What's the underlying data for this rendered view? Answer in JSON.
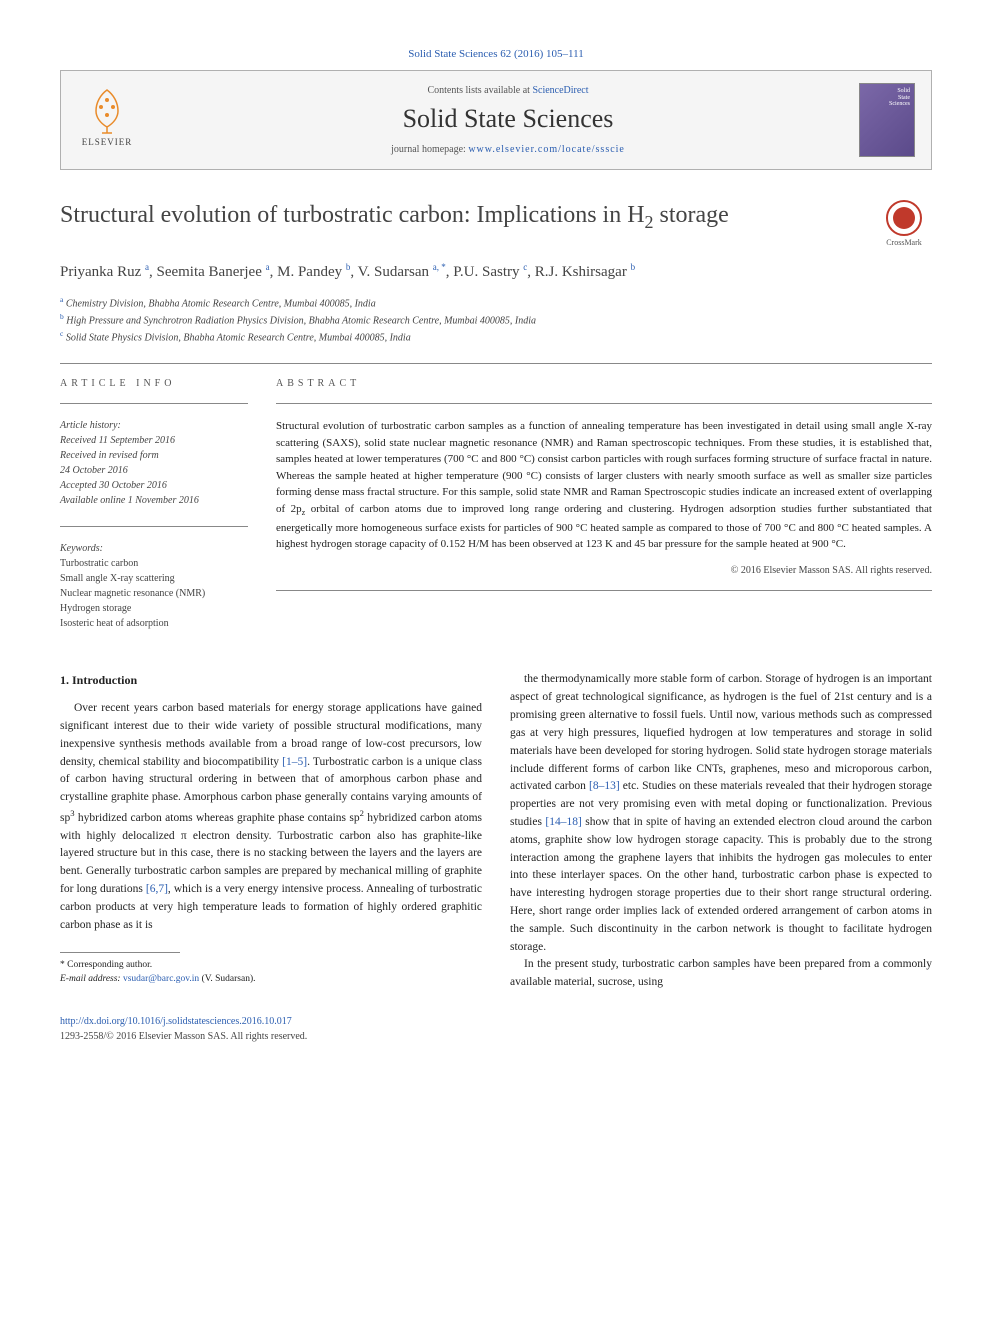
{
  "citation": "Solid State Sciences 62 (2016) 105–111",
  "header": {
    "contents_prefix": "Contents lists available at ",
    "contents_link": "ScienceDirect",
    "journal_name": "Solid State Sciences",
    "homepage_prefix": "journal homepage: ",
    "homepage_url": "www.elsevier.com/locate/ssscie",
    "publisher": "ELSEVIER",
    "cover_label": "Solid\nState\nSciences"
  },
  "crossmark_label": "CrossMark",
  "title_html": "Structural evolution of turbostratic carbon: Implications in H<sub>2</sub> storage",
  "authors_html": "Priyanka Ruz <sup>a</sup>, Seemita Banerjee <sup>a</sup>, M. Pandey <sup>b</sup>, V. Sudarsan <sup>a, *</sup>, P.U. Sastry <sup>c</sup>, R.J. Kshirsagar <sup>b</sup>",
  "affiliations": [
    {
      "marker": "a",
      "text": "Chemistry Division, Bhabha Atomic Research Centre, Mumbai 400085, India"
    },
    {
      "marker": "b",
      "text": "High Pressure and Synchrotron Radiation Physics Division, Bhabha Atomic Research Centre, Mumbai 400085, India"
    },
    {
      "marker": "c",
      "text": "Solid State Physics Division, Bhabha Atomic Research Centre, Mumbai 400085, India"
    }
  ],
  "article_info": {
    "heading": "ARTICLE INFO",
    "history_label": "Article history:",
    "history": [
      "Received 11 September 2016",
      "Received in revised form",
      "24 October 2016",
      "Accepted 30 October 2016",
      "Available online 1 November 2016"
    ],
    "keywords_label": "Keywords:",
    "keywords": [
      "Turbostratic carbon",
      "Small angle X-ray scattering",
      "Nuclear magnetic resonance (NMR)",
      "Hydrogen storage",
      "Isosteric heat of adsorption"
    ]
  },
  "abstract": {
    "heading": "ABSTRACT",
    "text_html": "Structural evolution of turbostratic carbon samples as a function of annealing temperature has been investigated in detail using small angle X-ray scattering (SAXS), solid state nuclear magnetic resonance (NMR) and Raman spectroscopic techniques. From these studies, it is established that, samples heated at lower temperatures (700 °C and 800 °C) consist carbon particles with rough surfaces forming structure of surface fractal in nature. Whereas the sample heated at higher temperature (900 °C) consists of larger clusters with nearly smooth surface as well as smaller size particles forming dense mass fractal structure. For this sample, solid state NMR and Raman Spectroscopic studies indicate an increased extent of overlapping of 2p<sub>z</sub> orbital of carbon atoms due to improved long range ordering and clustering. Hydrogen adsorption studies further substantiated that energetically more homogeneous surface exists for particles of 900 °C heated sample as compared to those of 700 °C and 800 °C heated samples. A highest hydrogen storage capacity of 0.152 H/M has been observed at 123 K and 45 bar pressure for the sample heated at 900 °C.",
    "copyright": "© 2016 Elsevier Masson SAS. All rights reserved."
  },
  "body": {
    "section_heading": "1. Introduction",
    "col1_html": "Over recent years carbon based materials for energy storage applications have gained significant interest due to their wide variety of possible structural modifications, many inexpensive synthesis methods available from a broad range of low-cost precursors, low density, chemical stability and biocompatibility <a class='ref' href='#'>[1–5]</a>. Turbostratic carbon is a unique class of carbon having structural ordering in between that of amorphous carbon phase and crystalline graphite phase. Amorphous carbon phase generally contains varying amounts of sp<sup>3</sup> hybridized carbon atoms whereas graphite phase contains sp<sup>2</sup> hybridized carbon atoms with highly delocalized π electron density. Turbostratic carbon also has graphite-like layered structure but in this case, there is no stacking between the layers and the layers are bent. Generally turbostratic carbon samples are prepared by mechanical milling of graphite for long durations <a class='ref' href='#'>[6,7]</a>, which is a very energy intensive process. Annealing of turbostratic carbon products at very high temperature leads to formation of highly ordered graphitic carbon phase as it is",
    "col2_p1_html": "the thermodynamically more stable form of carbon. Storage of hydrogen is an important aspect of great technological significance, as hydrogen is the fuel of 21st century and is a promising green alternative to fossil fuels. Until now, various methods such as compressed gas at very high pressures, liquefied hydrogen at low temperatures and storage in solid materials have been developed for storing hydrogen. Solid state hydrogen storage materials include different forms of carbon like CNTs, graphenes, meso and microporous carbon, activated carbon <a class='ref' href='#'>[8–13]</a> etc. Studies on these materials revealed that their hydrogen storage properties are not very promising even with metal doping or functionalization. Previous studies <a class='ref' href='#'>[14–18]</a> show that in spite of having an extended electron cloud around the carbon atoms, graphite show low hydrogen storage capacity. This is probably due to the strong interaction among the graphene layers that inhibits the hydrogen gas molecules to enter into these interlayer spaces. On the other hand, turbostratic carbon phase is expected to have interesting hydrogen storage properties due to their short range structural ordering. Here, short range order implies lack of extended ordered arrangement of carbon atoms in the sample. Such discontinuity in the carbon network is thought to facilitate hydrogen storage.",
    "col2_p2_html": "In the present study, turbostratic carbon samples have been prepared from a commonly available material, sucrose, using"
  },
  "footnotes": {
    "corresponding": "* Corresponding author.",
    "email_label": "E-mail address:",
    "email": "vsudar@barc.gov.in",
    "email_suffix": "(V. Sudarsan)."
  },
  "footer": {
    "doi": "http://dx.doi.org/10.1016/j.solidstatesciences.2016.10.017",
    "issn_copyright": "1293-2558/© 2016 Elsevier Masson SAS. All rights reserved."
  },
  "colors": {
    "link": "#2a5db0",
    "text": "#1a1a1a",
    "border": "#b0b0b0",
    "crossmark": "#c0392b",
    "elsevier_orange": "#e98b2a"
  }
}
